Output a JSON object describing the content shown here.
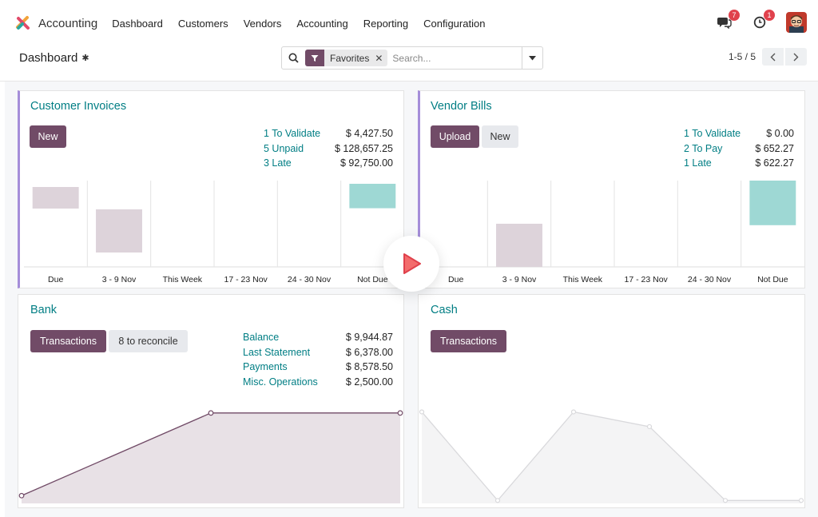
{
  "app": {
    "name": "Accounting"
  },
  "menu": [
    "Dashboard",
    "Customers",
    "Vendors",
    "Accounting",
    "Reporting",
    "Configuration"
  ],
  "nav_right": {
    "messages_count": "7",
    "activities_count": "1"
  },
  "control": {
    "title": "Dashboard",
    "facet_label": "Favorites",
    "search_placeholder": "Search...",
    "pager": "1-5 / 5"
  },
  "cards": {
    "customer_invoices": {
      "title": "Customer Invoices",
      "buttons": [
        "New"
      ],
      "stats": [
        {
          "label": "1 To Validate",
          "value": "$ 4,427.50"
        },
        {
          "label": "5 Unpaid",
          "value": "$ 128,657.25"
        },
        {
          "label": "3 Late",
          "value": "$ 92,750.00"
        }
      ]
    },
    "vendor_bills": {
      "title": "Vendor Bills",
      "buttons": [
        "Upload",
        "New"
      ],
      "stats": [
        {
          "label": "1 To Validate",
          "value": "$ 0.00"
        },
        {
          "label": "2 To Pay",
          "value": "$ 652.27"
        },
        {
          "label": "1 Late",
          "value": "$ 622.27"
        }
      ]
    },
    "bank": {
      "title": "Bank",
      "buttons": [
        "Transactions",
        "8 to reconcile"
      ],
      "stats": [
        {
          "label": "Balance",
          "value": "$ 9,944.87"
        },
        {
          "label": "Last Statement",
          "value": "$ 6,378.00"
        },
        {
          "label": "Payments",
          "value": "$ 8,578.50"
        },
        {
          "label": "Misc. Operations",
          "value": "$ 2,500.00"
        }
      ]
    },
    "cash": {
      "title": "Cash",
      "buttons": [
        "Transactions"
      ]
    }
  },
  "colors": {
    "primary": "#714b67",
    "teal": "#017e84",
    "bar_past": "#ddd3da",
    "bar_future": "#9ed8d4",
    "line_bank": "#714b67",
    "area_bank": "#e8e1e6",
    "area_cash": "#f4f4f5",
    "line_cash": "#d9d9dc"
  },
  "chart_data": [
    {
      "type": "bar",
      "chart": "customer_invoices",
      "categories": [
        "Due",
        "3 - 9 Nov",
        "This Week",
        "17 - 23 Nov",
        "24 - 30 Nov",
        "Not Due"
      ],
      "values": [
        15,
        30,
        0,
        0,
        0,
        17
      ],
      "ylim": [
        0,
        60
      ],
      "series_colors": [
        "past",
        "past",
        "past",
        "past",
        "past",
        "future"
      ]
    },
    {
      "type": "bar",
      "chart": "vendor_bills",
      "categories": [
        "Due",
        "3 - 9 Nov",
        "This Week",
        "17 - 23 Nov",
        "24 - 30 Nov",
        "Not Due"
      ],
      "values": [
        0,
        30,
        0,
        0,
        0,
        31
      ],
      "ylim": [
        0,
        60
      ],
      "series_colors": [
        "past",
        "past",
        "past",
        "past",
        "past",
        "future"
      ]
    },
    {
      "type": "area",
      "chart": "bank",
      "values": [
        0,
        6378,
        6378
      ],
      "ylim": [
        -600,
        7600
      ]
    },
    {
      "type": "area",
      "chart": "cash",
      "values": [
        6,
        0,
        6,
        5,
        0,
        0
      ],
      "ylim": [
        -0.2,
        7
      ]
    }
  ]
}
